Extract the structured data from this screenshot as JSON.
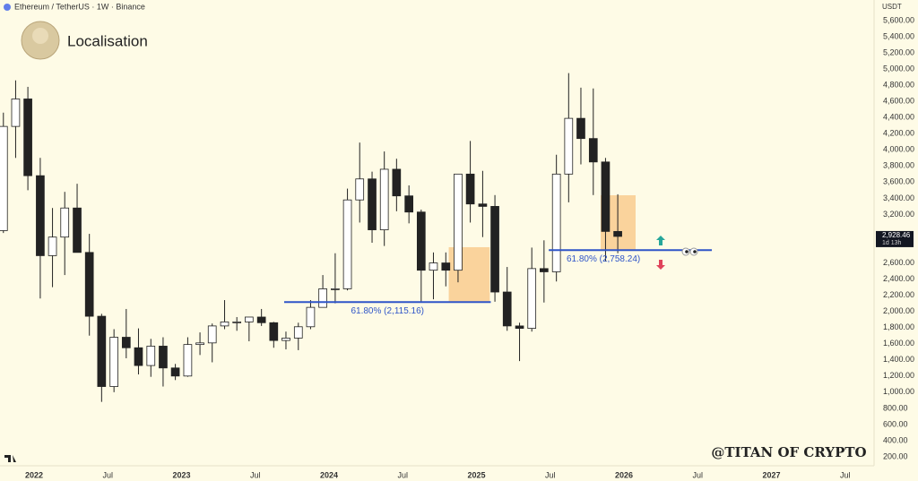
{
  "chart_data": {
    "type": "candlestick",
    "title": "Ethereum / TetherUS · 1W · Binance",
    "subtitle": "Localisation",
    "watermark": "@TITAN OF CRYPTO",
    "y_unit": "USDT",
    "x": [
      2021.792,
      2021.875,
      2021.958,
      2022.042,
      2022.125,
      2022.208,
      2022.292,
      2022.375,
      2022.458,
      2022.542,
      2022.625,
      2022.708,
      2022.792,
      2022.875,
      2022.958,
      2023.042,
      2023.125,
      2023.208,
      2023.292,
      2023.375,
      2023.458,
      2023.542,
      2023.625,
      2023.708,
      2023.792,
      2023.875,
      2023.958,
      2024.042,
      2024.125,
      2024.208,
      2024.292,
      2024.375,
      2024.458,
      2024.542,
      2024.625,
      2024.708,
      2024.792,
      2024.875,
      2024.958,
      2025.042,
      2025.125,
      2025.208,
      2025.292,
      2025.375,
      2025.458,
      2025.542,
      2025.625,
      2025.708,
      2025.792,
      2025.875,
      2025.958
    ],
    "open": [
      3000,
      4290,
      4630,
      3680,
      2690,
      2920,
      3280,
      2730,
      1940,
      1070,
      1680,
      1550,
      1330,
      1570,
      1300,
      1200,
      1590,
      1610,
      1820,
      1870,
      1870,
      1930,
      1860,
      1640,
      1670,
      1810,
      2050,
      2280,
      2280,
      3380,
      3640,
      3010,
      3760,
      3430,
      3230,
      2510,
      2600,
      2510,
      3700,
      3330,
      3300,
      2240,
      1820,
      1790,
      2530,
      2490,
      3700,
      4390,
      4140,
      3850,
      2990
    ],
    "high": [
      4460,
      4860,
      4780,
      3900,
      3280,
      3480,
      3580,
      2960,
      1970,
      1780,
      2030,
      1790,
      1660,
      1680,
      1350,
      1680,
      1740,
      1850,
      2140,
      1930,
      1930,
      2030,
      1870,
      1750,
      1860,
      2140,
      2450,
      2720,
      3520,
      4090,
      3730,
      3980,
      3890,
      3560,
      3260,
      2730,
      2730,
      3700,
      4110,
      3740,
      3440,
      2550,
      1860,
      2790,
      2880,
      3940,
      4950,
      4770,
      4760,
      3900,
      3450
    ],
    "low": [
      2970,
      3900,
      3500,
      2160,
      2300,
      2450,
      2770,
      1700,
      880,
      1000,
      1420,
      1220,
      1190,
      1070,
      1150,
      1190,
      1460,
      1370,
      1780,
      1760,
      1630,
      1820,
      1550,
      1530,
      1520,
      1780,
      2050,
      2100,
      2260,
      3100,
      2850,
      2810,
      3240,
      3090,
      2110,
      2150,
      2310,
      2360,
      3100,
      2920,
      2120,
      1760,
      1385,
      1750,
      2110,
      2370,
      3350,
      3820,
      3440,
      2620,
      2720
    ],
    "close": [
      4290,
      4630,
      3680,
      2690,
      2920,
      3280,
      2730,
      1940,
      1070,
      1680,
      1550,
      1330,
      1570,
      1300,
      1200,
      1590,
      1610,
      1820,
      1870,
      1870,
      1930,
      1860,
      1640,
      1670,
      1810,
      2050,
      2280,
      2280,
      3380,
      3640,
      3010,
      3760,
      3430,
      3230,
      2510,
      2600,
      2510,
      3700,
      3330,
      3300,
      2240,
      1820,
      1790,
      2530,
      2490,
      3700,
      4390,
      4140,
      3850,
      2990,
      2928.46
    ],
    "up_color": "#ffffff",
    "down_color": "#222222",
    "wick_color": "#222222",
    "price_tag": {
      "value": 2928.46,
      "label": "2,928.46",
      "countdown": "1d 13h"
    },
    "fib_levels": [
      {
        "value": 2115.16,
        "label": "61.80% (2,115.16)",
        "x": [
          2023.696,
          2025.097
        ]
      },
      {
        "value": 2758.24,
        "label": "61.80% (2,758.24)",
        "x": [
          2025.49,
          2026.596
        ]
      }
    ],
    "fib_color": "#2f55c8",
    "zones": [
      {
        "x": [
          2024.812,
          2025.09
        ],
        "y": [
          2107,
          2795
        ]
      },
      {
        "x": [
          2025.842,
          2026.079
        ],
        "y": [
          2751,
          3438
        ]
      }
    ],
    "zone_color": "#f9c98a",
    "xlim": [
      2021.769,
      2027.696
    ],
    "xticks": [
      2022,
      {
        "value": 2022.5,
        "label": "Jul"
      },
      2023,
      {
        "value": 2023.5,
        "label": "Jul"
      },
      2024,
      {
        "value": 2024.5,
        "label": "Jul"
      },
      2025,
      {
        "value": 2025.5,
        "label": "Jul"
      },
      2026,
      {
        "value": 2026.5,
        "label": "Jul"
      },
      2027,
      {
        "value": 2027.5,
        "label": "Jul"
      }
    ],
    "ylim": [
      89,
      5855
    ],
    "yticks": [
      {
        "value": 200,
        "label": "200.00"
      },
      {
        "value": 400,
        "label": "400.00"
      },
      {
        "value": 600,
        "label": "600.00"
      },
      {
        "value": 800,
        "label": "800.00"
      },
      {
        "value": 1000,
        "label": "1,000.00"
      },
      {
        "value": 1200,
        "label": "1,200.00"
      },
      {
        "value": 1400,
        "label": "1,400.00"
      },
      {
        "value": 1600,
        "label": "1,600.00"
      },
      {
        "value": 1800,
        "label": "1,800.00"
      },
      {
        "value": 2000,
        "label": "2,000.00"
      },
      {
        "value": 2200,
        "label": "2,200.00"
      },
      {
        "value": 2400,
        "label": "2,400.00"
      },
      {
        "value": 2600,
        "label": "2,600.00"
      },
      {
        "value": 3200,
        "label": "3,200.00"
      },
      {
        "value": 3400,
        "label": "3,400.00"
      },
      {
        "value": 3600,
        "label": "3,600.00"
      },
      {
        "value": 3800,
        "label": "3,800.00"
      },
      {
        "value": 4000,
        "label": "4,000.00"
      },
      {
        "value": 4200,
        "label": "4,200.00"
      },
      {
        "value": 4400,
        "label": "4,400.00"
      },
      {
        "value": 4600,
        "label": "4,600.00"
      },
      {
        "value": 4800,
        "label": "4,800.00"
      },
      {
        "value": 5000,
        "label": "5,000.00"
      },
      {
        "value": 5200,
        "label": "5,200.00"
      },
      {
        "value": 5400,
        "label": "5,400.00"
      },
      {
        "value": 5600,
        "label": "5,600.00"
      }
    ],
    "grid": false
  }
}
